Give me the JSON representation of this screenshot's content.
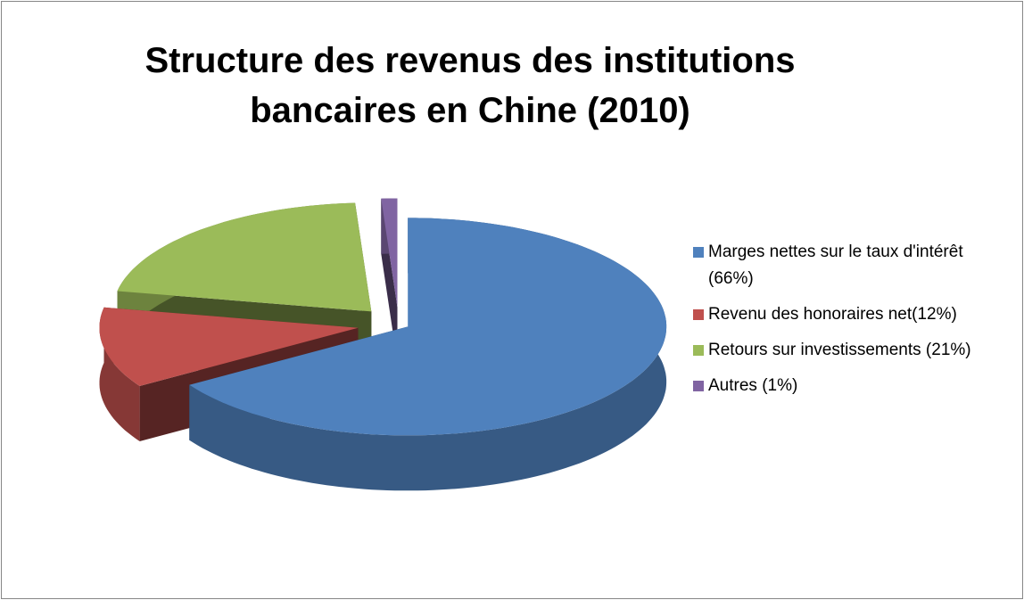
{
  "chart_data": {
    "type": "pie",
    "title": "Structure des revenus des institutions bancaires en Chine (2010)",
    "categories": [
      "Marges nettes sur le taux d'intérêt (66%)",
      "Revenu des honoraires net(12%)",
      "Retours sur investissements (21%)",
      "Autres (1%)"
    ],
    "values": [
      66,
      12,
      21,
      1
    ],
    "colors": [
      "#4f81bd",
      "#c0504d",
      "#9bbb59",
      "#8064a2"
    ],
    "legend": "right"
  }
}
